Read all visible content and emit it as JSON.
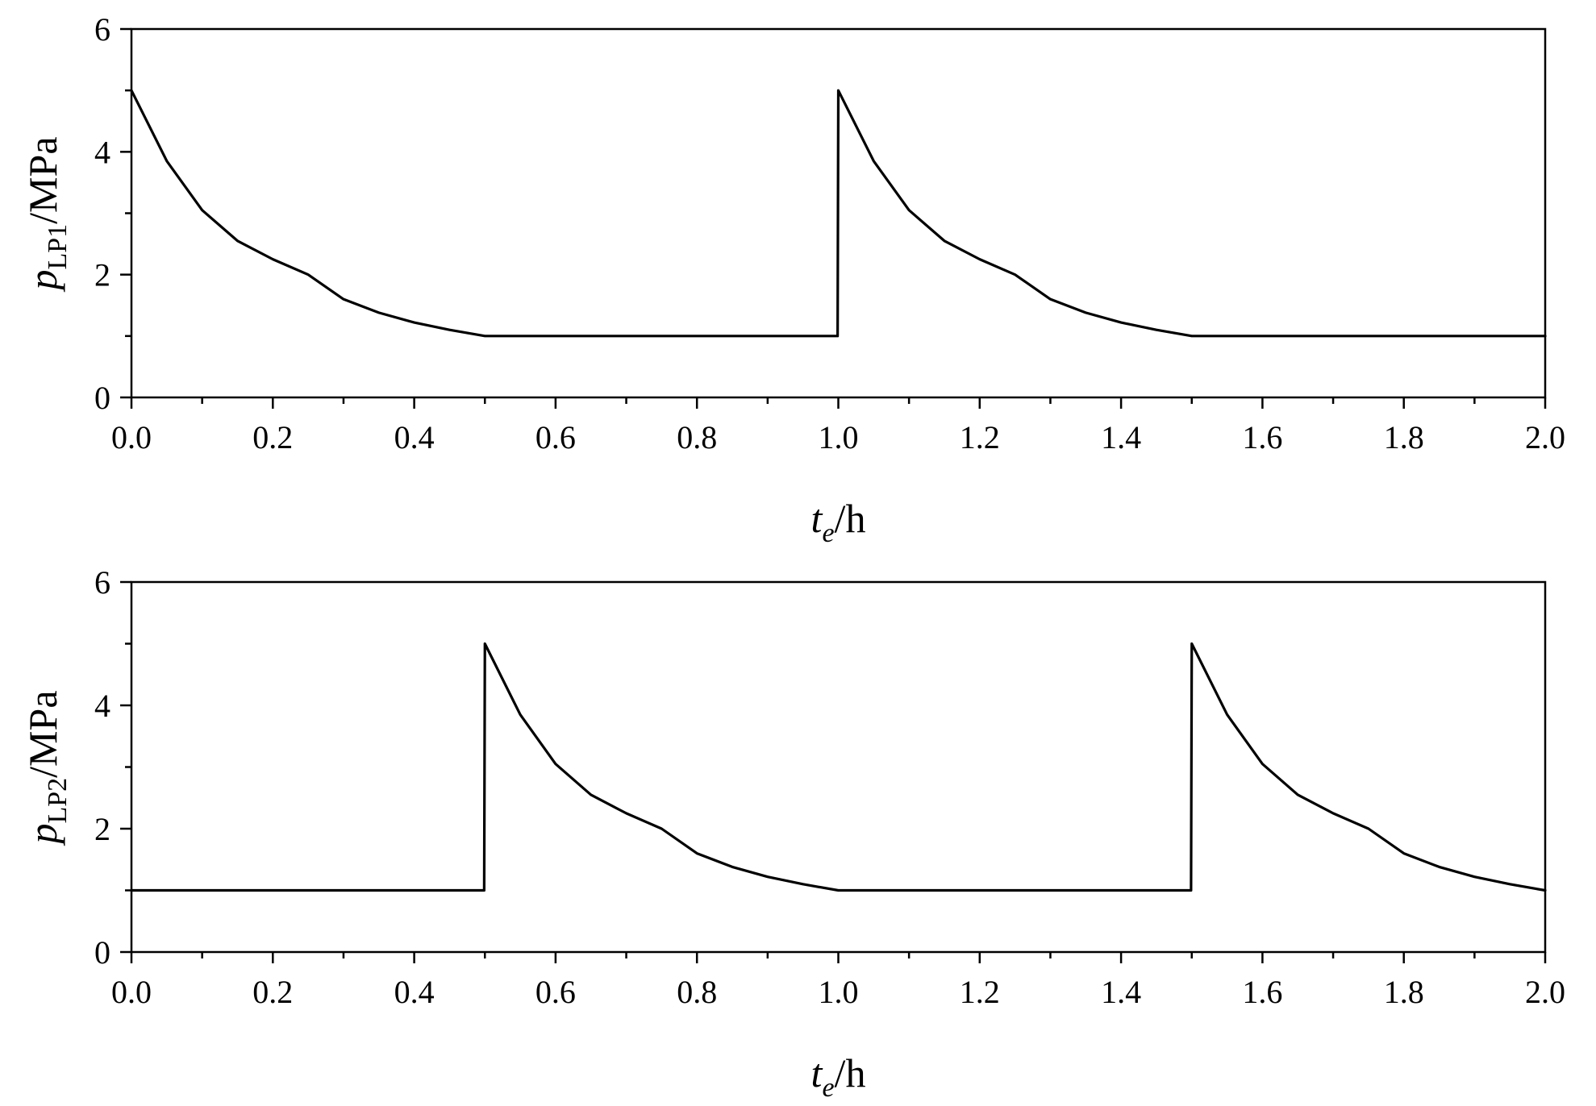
{
  "chart_data": [
    {
      "type": "line",
      "ylabel": {
        "main": "p",
        "sub": "LP1",
        "unit": "/MPa"
      },
      "xlabel": {
        "main": "t",
        "sub": "e",
        "unit": "/h"
      },
      "xlim": [
        0,
        2.0
      ],
      "ylim": [
        0,
        6
      ],
      "xticks": [
        "0.0",
        "0.2",
        "0.4",
        "0.6",
        "0.8",
        "1.0",
        "1.2",
        "1.4",
        "1.6",
        "1.8",
        "2.0"
      ],
      "yticks": [
        "0",
        "2",
        "4",
        "6"
      ],
      "grid": false,
      "line_color": "#000000",
      "series": [
        {
          "x": [
            0.0,
            0.05,
            0.1,
            0.15,
            0.2,
            0.25,
            0.3,
            0.35,
            0.4,
            0.45,
            0.5,
            0.6,
            0.7,
            0.8,
            0.9,
            0.999,
            1.0,
            1.05,
            1.1,
            1.15,
            1.2,
            1.25,
            1.3,
            1.35,
            1.4,
            1.45,
            1.5,
            1.6,
            1.7,
            1.8,
            1.9,
            2.0
          ],
          "y": [
            5.0,
            3.85,
            3.05,
            2.55,
            2.25,
            2.0,
            1.6,
            1.38,
            1.22,
            1.1,
            1.0,
            1.0,
            1.0,
            1.0,
            1.0,
            1.0,
            5.0,
            3.85,
            3.05,
            2.55,
            2.25,
            2.0,
            1.6,
            1.38,
            1.22,
            1.1,
            1.0,
            1.0,
            1.0,
            1.0,
            1.0,
            1.0
          ]
        }
      ]
    },
    {
      "type": "line",
      "ylabel": {
        "main": "p",
        "sub": "LP2",
        "unit": "/MPa"
      },
      "xlabel": {
        "main": "t",
        "sub": "e",
        "unit": "/h"
      },
      "xlim": [
        0,
        2.0
      ],
      "ylim": [
        0,
        6
      ],
      "xticks": [
        "0.0",
        "0.2",
        "0.4",
        "0.6",
        "0.8",
        "1.0",
        "1.2",
        "1.4",
        "1.6",
        "1.8",
        "2.0"
      ],
      "yticks": [
        "0",
        "2",
        "4",
        "6"
      ],
      "grid": false,
      "line_color": "#000000",
      "series": [
        {
          "x": [
            0.0,
            0.1,
            0.2,
            0.3,
            0.4,
            0.499,
            0.5,
            0.55,
            0.6,
            0.65,
            0.7,
            0.75,
            0.8,
            0.85,
            0.9,
            0.95,
            1.0,
            1.1,
            1.2,
            1.3,
            1.4,
            1.499,
            1.5,
            1.55,
            1.6,
            1.65,
            1.7,
            1.75,
            1.8,
            1.85,
            1.9,
            1.95,
            2.0
          ],
          "y": [
            1.0,
            1.0,
            1.0,
            1.0,
            1.0,
            1.0,
            5.0,
            3.85,
            3.05,
            2.55,
            2.25,
            2.0,
            1.6,
            1.38,
            1.22,
            1.1,
            1.0,
            1.0,
            1.0,
            1.0,
            1.0,
            1.0,
            5.0,
            3.85,
            3.05,
            2.55,
            2.25,
            2.0,
            1.6,
            1.38,
            1.22,
            1.1,
            1.0
          ]
        }
      ]
    }
  ]
}
